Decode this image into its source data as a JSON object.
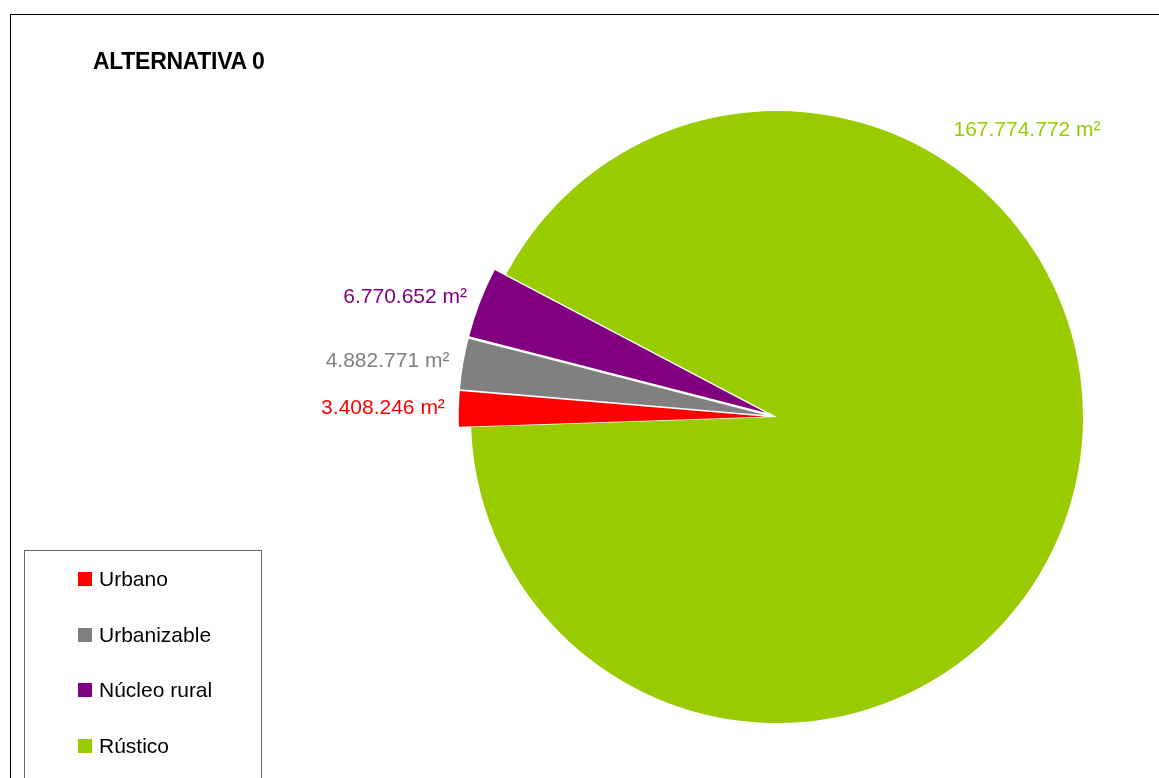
{
  "chart_data": {
    "type": "pie",
    "title": "ALTERNATIVA 0",
    "categories": [
      "Urbano",
      "Urbanizable",
      "Núcleo rural",
      "Rústico"
    ],
    "values": [
      3408246,
      4882771,
      6770652,
      167774772
    ],
    "colors": [
      "#ff0000",
      "#808080",
      "#800080",
      "#99cc00"
    ],
    "value_labels": [
      "3.408.246 m²",
      "4.882.771 m²",
      "6.770.652 m²",
      "167.774.772 m²"
    ],
    "legend": "bottom left"
  }
}
